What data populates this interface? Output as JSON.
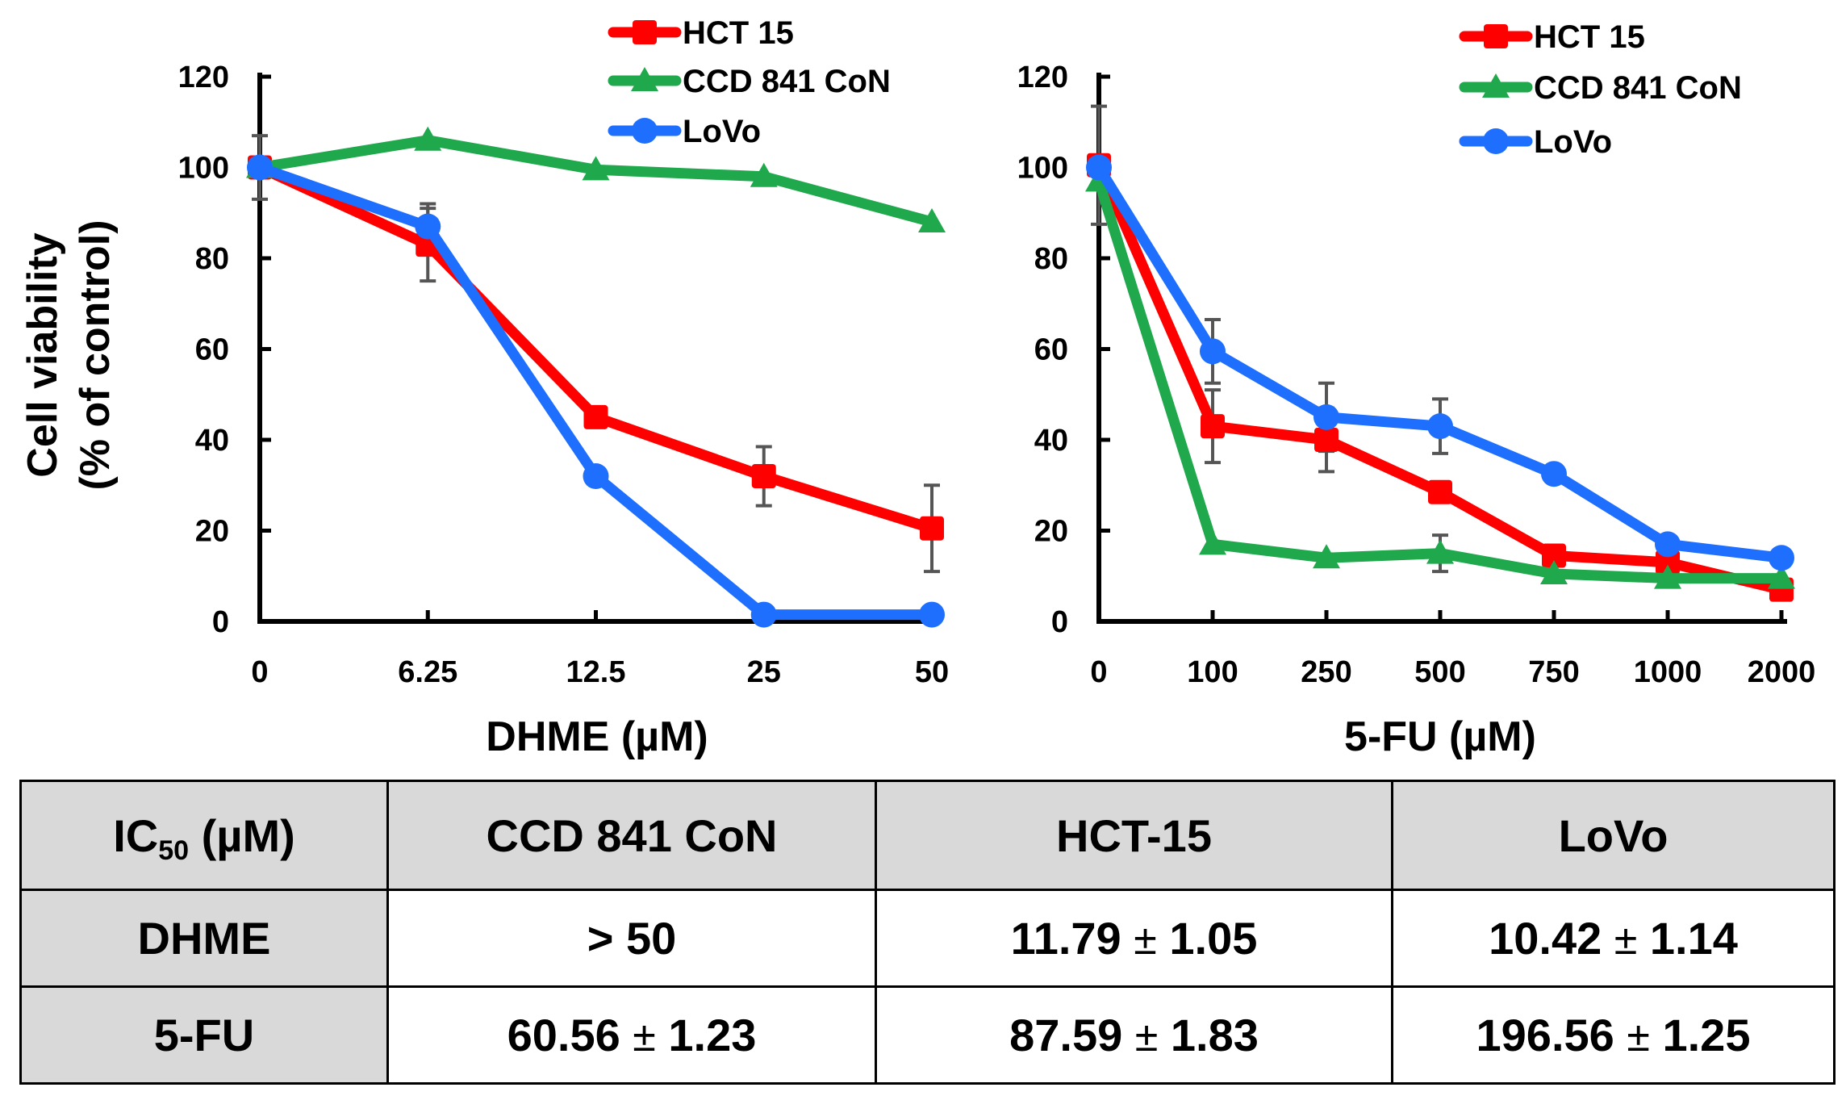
{
  "charts": [
    {
      "type": "line",
      "xlabel": "DHME (µM)",
      "ylabel_line1": "Cell viability",
      "ylabel_line2": "(% of control)",
      "ylim": [
        0,
        120
      ],
      "yticks": [
        "0",
        "20",
        "40",
        "60",
        "80",
        "100",
        "120"
      ],
      "categories": [
        "0",
        "6.25",
        "12.5",
        "25",
        "50"
      ],
      "legend": [
        "HCT 15",
        "CCD 841 CoN",
        "LoVo"
      ],
      "series": [
        {
          "name": "HCT 15",
          "color": "#ff0000",
          "marker": "square",
          "values": [
            100,
            83,
            45,
            32,
            20.5
          ],
          "errors": [
            7,
            8,
            1.5,
            6.5,
            9.5
          ]
        },
        {
          "name": "CCD 841 CoN",
          "color": "#1fa84c",
          "marker": "triangle",
          "values": [
            100,
            106,
            99.5,
            98,
            88
          ],
          "errors": [
            0,
            0,
            0,
            0,
            0
          ]
        },
        {
          "name": "LoVo",
          "color": "#1f6fff",
          "marker": "circle",
          "values": [
            100,
            87,
            32,
            1.5,
            1.5
          ],
          "errors": [
            0,
            5,
            0,
            0,
            0
          ]
        }
      ]
    },
    {
      "type": "line",
      "xlabel": "5-FU (µM)",
      "ylim": [
        0,
        120
      ],
      "yticks": [
        "0",
        "20",
        "40",
        "60",
        "80",
        "100",
        "120"
      ],
      "categories": [
        "0",
        "100",
        "250",
        "500",
        "750",
        "1000",
        "2000"
      ],
      "legend": [
        "HCT 15",
        "CCD 841 CoN",
        "LoVo"
      ],
      "series": [
        {
          "name": "HCT 15",
          "color": "#ff0000",
          "marker": "square",
          "values": [
            100.5,
            43,
            40,
            28.5,
            14.5,
            13,
            7
          ],
          "errors": [
            13,
            8,
            7,
            0,
            0,
            0,
            0
          ]
        },
        {
          "name": "CCD 841 CoN",
          "color": "#1fa84c",
          "marker": "triangle",
          "values": [
            97,
            17,
            14,
            15,
            10.5,
            9.5,
            9.5
          ],
          "errors": [
            0,
            0,
            0,
            4,
            0,
            0,
            0
          ]
        },
        {
          "name": "LoVo",
          "color": "#1f6fff",
          "marker": "circle",
          "values": [
            100,
            59.5,
            45,
            43,
            32.5,
            17,
            14
          ],
          "errors": [
            0,
            7,
            7.5,
            6,
            0,
            0,
            0
          ]
        }
      ]
    }
  ],
  "chart_data": [
    {
      "type": "line",
      "title": "",
      "xlabel": "DHME (µM)",
      "ylabel": "Cell viability (% of control)",
      "ylim": [
        0,
        120
      ],
      "categories": [
        "0",
        "6.25",
        "12.5",
        "25",
        "50"
      ],
      "series": [
        {
          "name": "HCT 15",
          "values": [
            100,
            83,
            45,
            32,
            20.5
          ]
        },
        {
          "name": "CCD 841 CoN",
          "values": [
            100,
            106,
            99.5,
            98,
            88
          ]
        },
        {
          "name": "LoVo",
          "values": [
            100,
            87,
            32,
            1.5,
            1.5
          ]
        }
      ]
    },
    {
      "type": "line",
      "title": "",
      "xlabel": "5-FU (µM)",
      "ylabel": "Cell viability (% of control)",
      "ylim": [
        0,
        120
      ],
      "categories": [
        "0",
        "100",
        "250",
        "500",
        "750",
        "1000",
        "2000"
      ],
      "series": [
        {
          "name": "HCT 15",
          "values": [
            100.5,
            43,
            40,
            28.5,
            14.5,
            13,
            7
          ]
        },
        {
          "name": "CCD 841 CoN",
          "values": [
            97,
            17,
            14,
            15,
            10.5,
            9.5,
            9.5
          ]
        },
        {
          "name": "LoVo",
          "values": [
            100,
            59.5,
            45,
            43,
            32.5,
            17,
            14
          ]
        }
      ]
    }
  ],
  "table": {
    "header": {
      "corner_main": "IC",
      "corner_sub": "50",
      "corner_unit": " (µM)",
      "col1": "CCD 841 CoN",
      "col2": "HCT-15",
      "col3": "LoVo"
    },
    "pm": "±",
    "rows": [
      {
        "label": "DHME",
        "c1": "> 50",
        "c1_err": "",
        "c2": "11.79",
        "c2_err": "1.05",
        "c3": "10.42",
        "c3_err": "1.14"
      },
      {
        "label": "5-FU",
        "c1": "60.56",
        "c1_err": "1.23",
        "c2": "87.59",
        "c2_err": "1.83",
        "c3": "196.56",
        "c3_err": "1.25"
      }
    ]
  }
}
